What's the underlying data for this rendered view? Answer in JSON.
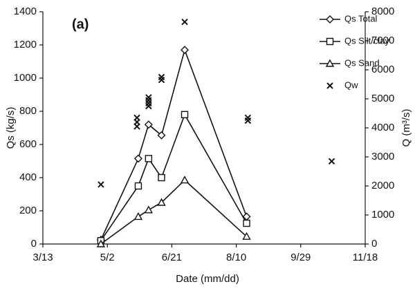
{
  "chart_data": {
    "type": "line",
    "title": "(a)",
    "x_label": "Date (mm/dd)",
    "y_label": "Qs (kg/s)",
    "y2_label": "Q (m³/s)",
    "xlim": [
      72,
      322
    ],
    "xticks": [
      {
        "value": 72,
        "label": "3/13"
      },
      {
        "value": 122,
        "label": "5/2"
      },
      {
        "value": 172,
        "label": "6/21"
      },
      {
        "value": 222,
        "label": "8/10"
      },
      {
        "value": 272,
        "label": "9/29"
      },
      {
        "value": 322,
        "label": "11/18"
      }
    ],
    "ylim": [
      0,
      1400
    ],
    "yticks": [
      0,
      200,
      400,
      600,
      800,
      1000,
      1200,
      1400
    ],
    "y2lim": [
      0,
      8000
    ],
    "y2ticks": [
      0,
      1000,
      2000,
      3000,
      4000,
      5000,
      6000,
      7000,
      8000
    ],
    "legend": "upper right",
    "grid": false,
    "series": [
      {
        "name": "Qs Total",
        "color": "#111111",
        "marker": "diamond",
        "mode": "lines+markers",
        "x": [
          117,
          146,
          154,
          164,
          182,
          230
        ],
        "values": [
          25,
          515,
          720,
          655,
          1170,
          165
        ]
      },
      {
        "name": "Qs Silt/clay",
        "color": "#111111",
        "marker": "square",
        "mode": "lines+markers",
        "x": [
          117,
          146,
          154,
          164,
          182,
          230
        ],
        "values": [
          20,
          350,
          515,
          400,
          780,
          125
        ]
      },
      {
        "name": "Qs Sand",
        "color": "#111111",
        "marker": "triangle",
        "mode": "lines+markers",
        "x": [
          117,
          146,
          154,
          164,
          182,
          230
        ],
        "values": [
          0,
          165,
          205,
          250,
          385,
          45
        ]
      },
      {
        "name": "Qw",
        "color": "#111111",
        "marker": "x",
        "mode": "markers",
        "axis": "y2",
        "x": [
          117,
          145,
          145,
          145,
          154,
          154,
          154,
          154,
          164,
          164,
          182,
          231,
          231,
          296
        ],
        "values": [
          2050,
          4350,
          4200,
          4050,
          5050,
          4950,
          4850,
          4750,
          5750,
          5650,
          7650,
          4350,
          4250,
          2850
        ]
      }
    ]
  }
}
